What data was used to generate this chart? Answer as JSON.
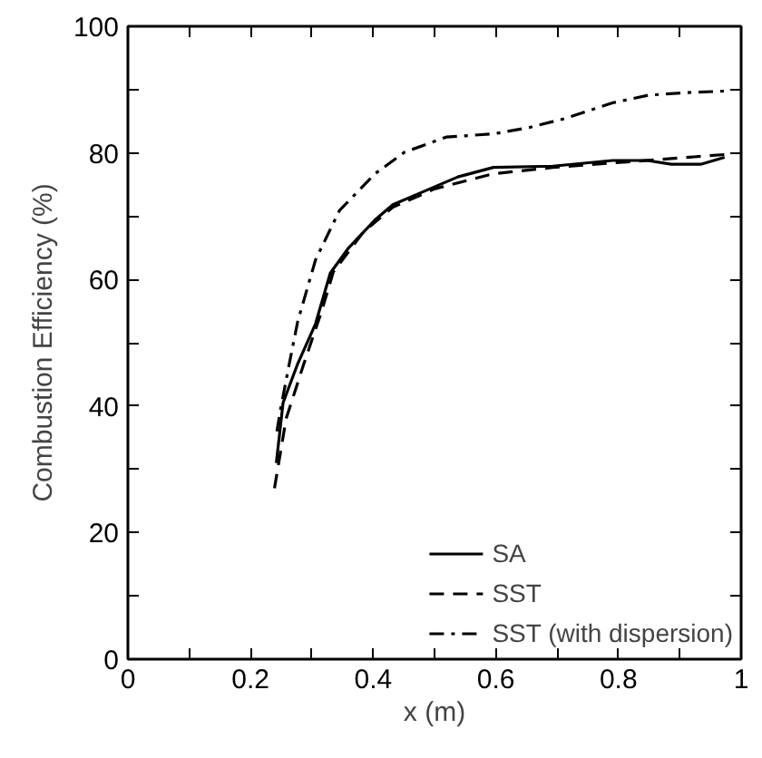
{
  "chart_data": {
    "type": "line",
    "xlabel": "x (m)",
    "ylabel": "Combustion Efficiency (%)",
    "xlim": [
      0,
      1
    ],
    "ylim": [
      0,
      100
    ],
    "xticks": [
      0,
      {
        "value": 0.1,
        "label": null
      },
      0.2,
      {
        "value": 0.3,
        "label": null
      },
      0.4,
      {
        "value": 0.5,
        "label": null
      },
      0.6,
      {
        "value": 0.7,
        "label": null
      },
      0.8,
      {
        "value": 0.9,
        "label": null
      },
      1
    ],
    "yticks": [
      0,
      {
        "value": 10,
        "label": null
      },
      20,
      {
        "value": 30,
        "label": null
      },
      40,
      {
        "value": 50,
        "label": null
      },
      60,
      {
        "value": 70,
        "label": null
      },
      80,
      {
        "value": 90,
        "label": null
      },
      100
    ],
    "grid": false,
    "legend": "bottom right",
    "series": [
      {
        "name": "SA",
        "color": "#000000",
        "line_style": "solid",
        "x": [
          0.242,
          0.253,
          0.277,
          0.306,
          0.33,
          0.36,
          0.403,
          0.432,
          0.48,
          0.538,
          0.596,
          0.693,
          0.79,
          0.847,
          0.886,
          0.934,
          0.973
        ],
        "values": [
          31,
          40.5,
          46.7,
          53,
          61,
          65,
          69.4,
          71.8,
          73.8,
          76.2,
          77.7,
          77.9,
          78.8,
          78.8,
          78.2,
          78.2,
          79.3
        ]
      },
      {
        "name": "SST",
        "color": "#000000",
        "line_style": "dashed",
        "x": [
          0.239,
          0.258,
          0.287,
          0.316,
          0.335,
          0.384,
          0.432,
          0.5,
          0.596,
          0.693,
          0.79,
          0.886,
          0.983
        ],
        "values": [
          27,
          38,
          46.7,
          55,
          61.2,
          67.5,
          71.4,
          74.3,
          76.7,
          77.7,
          78.4,
          79.1,
          79.8
        ]
      },
      {
        "name": "SST (with dispersion)",
        "color": "#000000",
        "line_style": "dashdot",
        "x": [
          0.243,
          0.248,
          0.263,
          0.277,
          0.306,
          0.345,
          0.403,
          0.451,
          0.519,
          0.596,
          0.654,
          0.712,
          0.79,
          0.848,
          0.906,
          0.983
        ],
        "values": [
          36,
          39,
          46.6,
          53.4,
          63.1,
          70.9,
          76.7,
          80.1,
          82.5,
          83,
          84,
          85.4,
          87.9,
          89.1,
          89.5,
          89.8
        ]
      }
    ]
  }
}
